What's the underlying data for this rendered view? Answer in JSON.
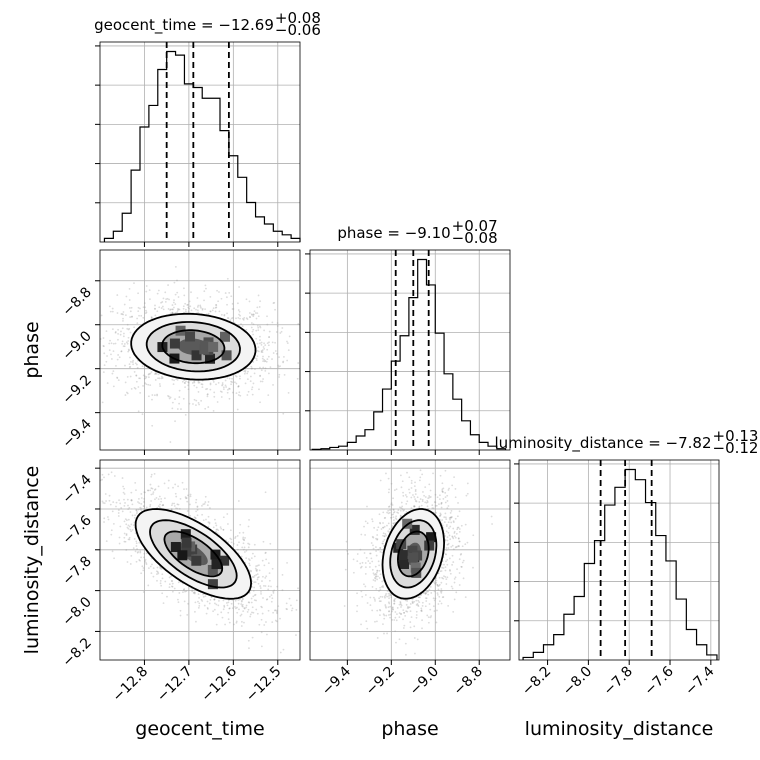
{
  "chart_data": {
    "type": "corner",
    "params": [
      {
        "name": "geocent_time",
        "xlim": [
          -12.9,
          -12.45
        ],
        "ticks": [
          -12.8,
          -12.7,
          -12.6,
          -12.5
        ],
        "tick_labels": [
          "−12.8",
          "−12.7",
          "−12.6",
          "−12.5"
        ],
        "title": {
          "prefix": "geocent_time = −12.69",
          "plus": "+0.08",
          "minus": "−0.06"
        },
        "quantiles": [
          -12.75,
          -12.69,
          -12.61
        ],
        "hist": {
          "edges": [
            -12.89,
            -12.87,
            -12.85,
            -12.83,
            -12.81,
            -12.79,
            -12.77,
            -12.75,
            -12.73,
            -12.71,
            -12.69,
            -12.67,
            -12.65,
            -12.63,
            -12.61,
            -12.59,
            -12.57,
            -12.55,
            -12.53,
            -12.51,
            -12.49,
            -12.47,
            -12.45
          ],
          "counts": [
            1,
            3,
            8,
            20,
            32,
            38,
            48,
            53,
            52,
            44,
            43,
            40,
            40,
            31,
            24,
            18,
            11,
            7,
            5,
            3,
            2,
            1
          ]
        }
      },
      {
        "name": "phase",
        "xlim": [
          -9.57,
          -8.66
        ],
        "ticks": [
          -9.4,
          -9.2,
          -9.0,
          -8.8
        ],
        "tick_labels": [
          "−9.4",
          "−9.2",
          "−9.0",
          "−8.8"
        ],
        "title": {
          "prefix": "phase = −9.10",
          "plus": "+0.07",
          "minus": "−0.08"
        },
        "quantiles": [
          -9.18,
          -9.1,
          -9.03
        ],
        "hist": {
          "edges": [
            -9.56,
            -9.52,
            -9.48,
            -9.44,
            -9.4,
            -9.36,
            -9.32,
            -9.28,
            -9.24,
            -9.2,
            -9.16,
            -9.12,
            -9.08,
            -9.04,
            -9.0,
            -8.96,
            -8.92,
            -8.88,
            -8.84,
            -8.8,
            -8.76,
            -8.72,
            -8.68
          ],
          "counts": [
            0.5,
            1,
            2,
            3,
            6,
            11,
            16,
            30,
            48,
            70,
            90,
            120,
            150,
            130,
            92,
            60,
            40,
            23,
            12,
            6,
            3,
            1
          ]
        }
      },
      {
        "name": "luminosity_distance",
        "xlim": [
          -8.34,
          -7.36
        ],
        "ticks": [
          -8.2,
          -8.0,
          -7.8,
          -7.6,
          -7.4
        ],
        "tick_labels": [
          "−8.2",
          "−8.0",
          "−7.8",
          "−7.6",
          "−7.4"
        ],
        "title": {
          "prefix": "luminosity_distance = −7.82",
          "plus": "+0.13",
          "minus": "−0.12"
        },
        "quantiles": [
          -7.94,
          -7.82,
          -7.69
        ],
        "hist": {
          "edges": [
            -8.32,
            -8.27,
            -8.22,
            -8.17,
            -8.12,
            -8.07,
            -8.02,
            -7.97,
            -7.92,
            -7.87,
            -7.82,
            -7.77,
            -7.72,
            -7.67,
            -7.62,
            -7.57,
            -7.52,
            -7.47,
            -7.42,
            -7.37
          ],
          "counts": [
            1,
            3,
            6,
            10,
            18,
            25,
            38,
            47,
            61,
            68,
            75,
            71,
            62,
            49,
            39,
            24,
            12,
            6,
            2
          ]
        }
      }
    ],
    "ylims_2d": {
      "phase": [
        -9.57,
        -8.66
      ],
      "luminosity_distance": [
        -8.34,
        -7.36
      ]
    },
    "pairs": [
      {
        "x": 0,
        "y": 1,
        "mean": [
          -12.69,
          -9.1
        ],
        "sd": [
          0.07,
          0.075
        ],
        "rho": -0.1,
        "scatter_sd": [
          0.09,
          0.11
        ]
      },
      {
        "x": 0,
        "y": 2,
        "mean": [
          -12.69,
          -7.82
        ],
        "sd": [
          0.065,
          0.11
        ],
        "rho": -0.65,
        "scatter_sd": [
          0.085,
          0.15
        ]
      },
      {
        "x": 1,
        "y": 2,
        "mean": [
          -9.1,
          -7.82
        ],
        "sd": [
          0.07,
          0.11
        ],
        "rho": 0.25,
        "scatter_sd": [
          0.1,
          0.15
        ]
      }
    ],
    "contour_levels_sigma": [
      0.5,
      1.0,
      1.5,
      2.0
    ],
    "grid": true
  }
}
